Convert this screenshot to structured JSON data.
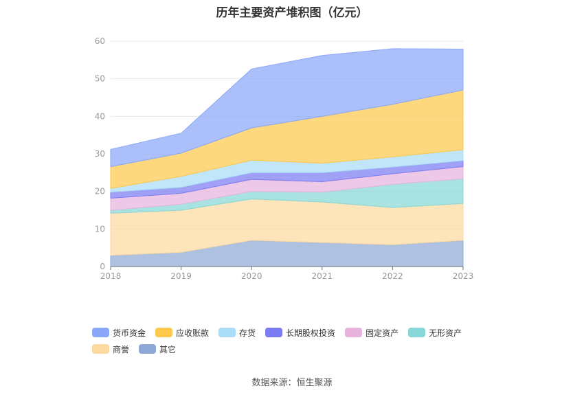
{
  "title": "历年主要资产堆积图（亿元）",
  "source": "数据来源：恒生聚源",
  "chart_data": {
    "type": "area",
    "stacked": true,
    "categories": [
      "2018",
      "2019",
      "2020",
      "2021",
      "2022",
      "2023"
    ],
    "ylim": [
      0,
      60
    ],
    "yticks": [
      0,
      10,
      20,
      30,
      40,
      50,
      60
    ],
    "grid": true,
    "legend_position": "bottom",
    "series": [
      {
        "name": "其它",
        "color": "#8fa9d6",
        "values": [
          3.0,
          3.8,
          7.0,
          6.4,
          5.8,
          7.0
        ]
      },
      {
        "name": "商誉",
        "color": "#fcd9a0",
        "values": [
          11.2,
          11.2,
          11.0,
          10.8,
          9.9,
          9.8
        ]
      },
      {
        "name": "无形资产",
        "color": "#86d7d6",
        "values": [
          0.8,
          1.6,
          2.0,
          2.6,
          6.2,
          6.6
        ]
      },
      {
        "name": "固定资产",
        "color": "#e8b4de",
        "values": [
          3.2,
          2.9,
          3.2,
          2.8,
          2.8,
          3.2
        ]
      },
      {
        "name": "长期股权投资",
        "color": "#7b7cf2",
        "values": [
          1.6,
          1.6,
          1.8,
          2.4,
          1.8,
          1.6
        ]
      },
      {
        "name": "存货",
        "color": "#a9ddf7",
        "values": [
          1.0,
          2.9,
          3.3,
          2.5,
          2.7,
          2.9
        ]
      },
      {
        "name": "应收账款",
        "color": "#fec94e",
        "values": [
          5.8,
          6.2,
          8.6,
          12.5,
          14.0,
          15.9
        ]
      },
      {
        "name": "货币资金",
        "color": "#8aa7f9",
        "values": [
          4.6,
          5.3,
          15.7,
          16.2,
          14.8,
          10.9
        ]
      }
    ],
    "legend_order": [
      "货币资金",
      "应收账款",
      "存货",
      "长期股权投资",
      "固定资产",
      "无形资产",
      "商誉",
      "其它"
    ]
  }
}
